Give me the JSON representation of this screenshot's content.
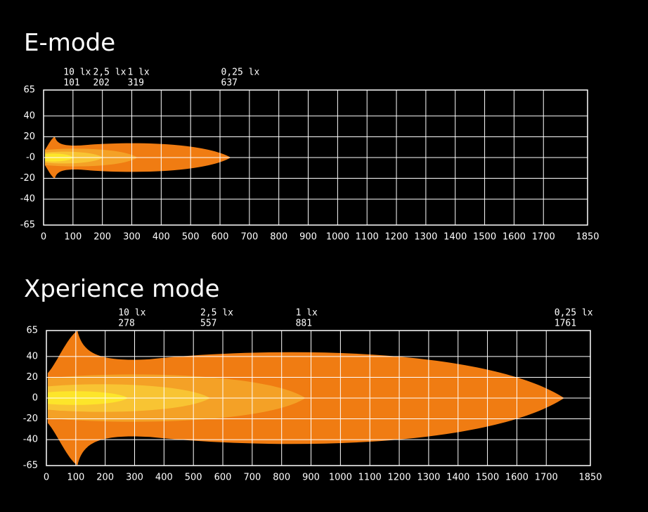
{
  "chart_data": [
    {
      "type": "isolux",
      "title": "E-mode",
      "xlim": [
        0,
        1850
      ],
      "xticks": [
        0,
        100,
        200,
        300,
        400,
        500,
        600,
        700,
        800,
        900,
        1000,
        1100,
        1200,
        1300,
        1400,
        1500,
        1600,
        1700,
        1850
      ],
      "ylim": [
        -65,
        65
      ],
      "yticks": [
        -65,
        -40,
        -20,
        {
          "value": 0,
          "label": "-0"
        },
        20,
        40,
        65
      ],
      "grid": true,
      "series": [
        {
          "name": "0,25 lx",
          "distance": 637,
          "width": 15,
          "color": "#f07c12"
        },
        {
          "name": "1 lx",
          "distance": 319,
          "width": 9,
          "color": "#f4a126"
        },
        {
          "name": "2,5 lx",
          "distance": 202,
          "width": 6,
          "color": "#f8c433"
        },
        {
          "name": "10 lx",
          "distance": 101,
          "width": 4,
          "color": "#fde52a"
        }
      ]
    },
    {
      "type": "isolux",
      "title": "Xperience mode",
      "xlim": [
        0,
        1850
      ],
      "xticks": [
        0,
        100,
        200,
        300,
        400,
        500,
        600,
        700,
        800,
        900,
        1000,
        1100,
        1200,
        1300,
        1400,
        1500,
        1600,
        1700,
        1850
      ],
      "ylim": [
        -65,
        65
      ],
      "yticks": [
        -65,
        -40,
        -20,
        0,
        20,
        40,
        65
      ],
      "grid": true,
      "series": [
        {
          "name": "0,25 lx",
          "distance": 1761,
          "width": 48,
          "color": "#f07c12"
        },
        {
          "name": "1 lx",
          "distance": 881,
          "width": 24,
          "color": "#f4a126"
        },
        {
          "name": "2,5 lx",
          "distance": 557,
          "width": 14,
          "color": "#f8c433"
        },
        {
          "name": "10 lx",
          "distance": 278,
          "width": 7,
          "color": "#fde52a"
        }
      ]
    }
  ]
}
